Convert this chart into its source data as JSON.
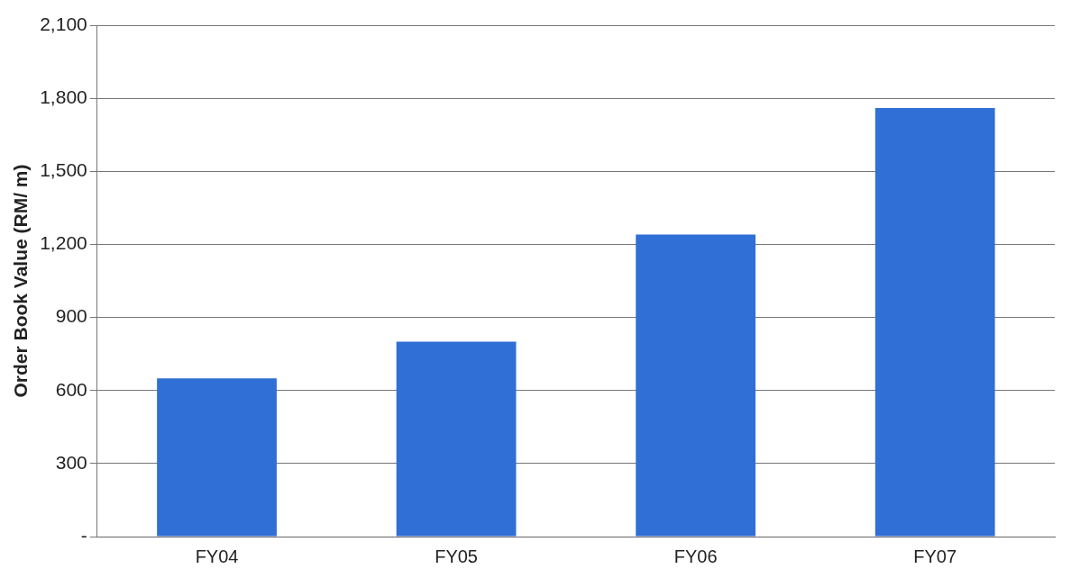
{
  "chart_data": {
    "type": "bar",
    "ylabel": "Order Book Value (RM/ m)",
    "categories": [
      "FY04",
      "FY05",
      "FY06",
      "FY07"
    ],
    "values": [
      650,
      800,
      1240,
      1760
    ],
    "color": "#2f6fd6",
    "ylim": [
      0,
      2100
    ],
    "yticks": [
      {
        "value": 0,
        "label": "-"
      },
      {
        "value": 300,
        "label": "300"
      },
      {
        "value": 600,
        "label": "600"
      },
      {
        "value": 900,
        "label": "900"
      },
      {
        "value": 1200,
        "label": "1,200"
      },
      {
        "value": 1500,
        "label": "1,500"
      },
      {
        "value": 1800,
        "label": "1,800"
      },
      {
        "value": 2100,
        "label": "2,100"
      }
    ],
    "grid": "y"
  }
}
